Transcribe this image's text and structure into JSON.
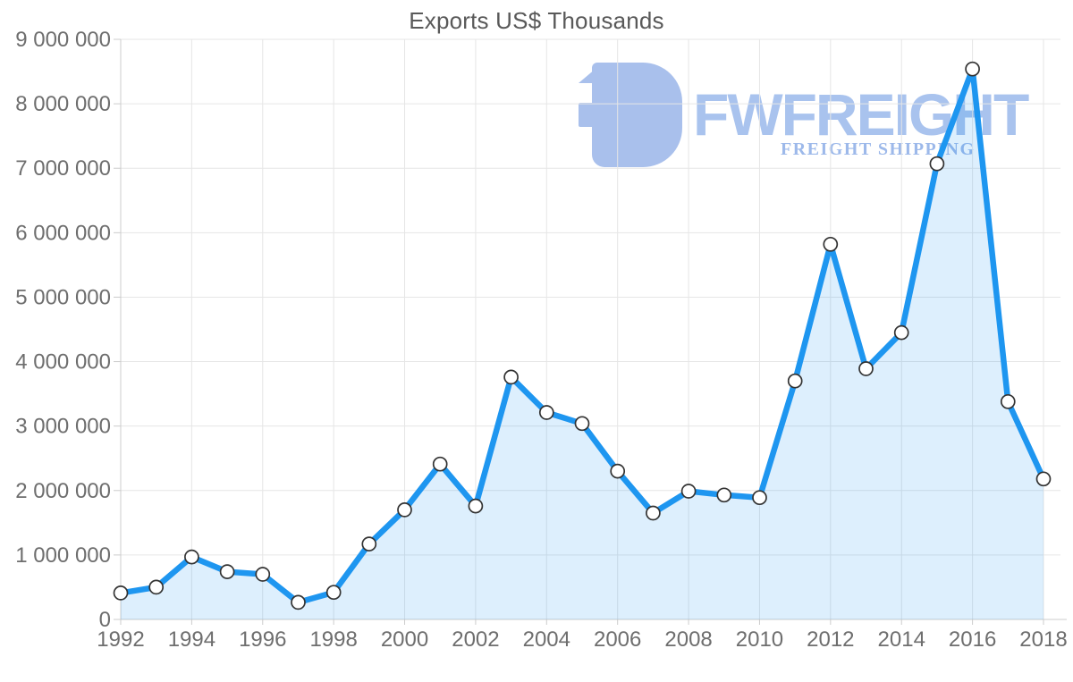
{
  "page": {
    "background": "#ffffff"
  },
  "watermark": {
    "brand": "FWFREIGHT",
    "tagline": "FREIGHT SHIPPING",
    "mark_color": "#a9c0ec",
    "brand_color": "#a9c3ee",
    "tagline_color": "#9db9ea"
  },
  "chart_data": {
    "type": "line",
    "title": "Exports US$ Thousands",
    "xlabel": "",
    "ylabel": "",
    "x": [
      1992,
      1993,
      1994,
      1995,
      1996,
      1997,
      1998,
      1999,
      2000,
      2001,
      2002,
      2003,
      2004,
      2005,
      2006,
      2007,
      2008,
      2009,
      2010,
      2011,
      2012,
      2013,
      2014,
      2015,
      2016,
      2017,
      2018
    ],
    "series": [
      {
        "name": "Exports US$ Thousands",
        "values": [
          410000,
          500000,
          970000,
          740000,
          700000,
          265000,
          420000,
          1170000,
          1700000,
          2410000,
          1760000,
          3760000,
          3210000,
          3040000,
          2300000,
          1650000,
          1990000,
          1930000,
          1890000,
          3700000,
          5820000,
          3890000,
          4450000,
          7070000,
          8540000,
          3380000,
          2180000
        ]
      }
    ],
    "ylim": [
      0,
      9000000
    ],
    "y_tick_step": 1000000,
    "y_tick_labels": [
      "0",
      "1 000 000",
      "2 000 000",
      "3 000 000",
      "4 000 000",
      "5 000 000",
      "6 000 000",
      "7 000 000",
      "8 000 000",
      "9 000 000"
    ],
    "x_tick_years": [
      1992,
      1994,
      1996,
      1998,
      2000,
      2002,
      2004,
      2006,
      2008,
      2010,
      2012,
      2014,
      2016,
      2018
    ],
    "x_tick_labels": [
      "1992",
      "1994",
      "1996",
      "1998",
      "2000",
      "2002",
      "2004",
      "2006",
      "2008",
      "2010",
      "2012",
      "2014",
      "2016",
      "2018"
    ],
    "grid": true,
    "legend_position": "none",
    "marker": "circle",
    "styles": {
      "line_color": "#1e96f0",
      "area_color": "rgba(30,150,240,0.15)",
      "marker_fill": "#ffffff",
      "marker_stroke": "#333333",
      "grid_color": "#e6e6e6",
      "axis_color": "#cccccc",
      "label_color": "#6e6e6e",
      "title_color": "#595959"
    }
  }
}
